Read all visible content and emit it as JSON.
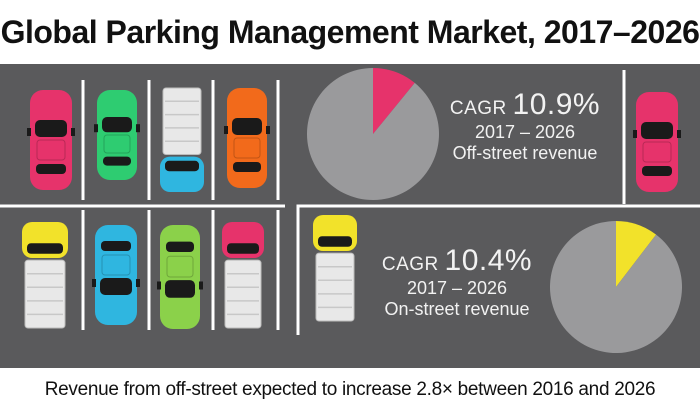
{
  "title": "Global Parking Management Market, 2017–2026",
  "footer": "Revenue from off-street expected to increase 2.8× between 2016 and 2026",
  "colors": {
    "background": "#5a5a5c",
    "pie_base": "#9a9a9c",
    "offstreet_accent": "#e6336b",
    "onstreet_accent": "#f2e22a",
    "line": "#ffffff"
  },
  "chart_data": [
    {
      "type": "pie",
      "title": "",
      "cagr_label": "CAGR",
      "cagr_value": "10.9%",
      "period": "2017 – 2026",
      "label": "Off-street revenue",
      "slices": [
        {
          "name": "",
          "value": 10.9,
          "color": "#e6336b"
        },
        {
          "name": "",
          "value": 89.1,
          "color": "#9a9a9c"
        }
      ]
    },
    {
      "type": "pie",
      "title": "",
      "cagr_label": "CAGR",
      "cagr_value": "10.4%",
      "period": "2017 – 2026",
      "label": "On-street revenue",
      "slices": [
        {
          "name": "",
          "value": 10.4,
          "color": "#f2e22a"
        },
        {
          "name": "",
          "value": 89.6,
          "color": "#9a9a9c"
        }
      ]
    }
  ],
  "vehicles": [
    {
      "kind": "car",
      "color": "#e6336b",
      "name": "car-pink-top-1"
    },
    {
      "kind": "car",
      "color": "#2ecc71",
      "name": "car-green-top-2"
    },
    {
      "kind": "truck",
      "color": "#2fb6e0",
      "name": "truck-blue-top-3"
    },
    {
      "kind": "car",
      "color": "#f26a1b",
      "name": "car-orange-top-4"
    },
    {
      "kind": "truck",
      "color": "#f2e22a",
      "name": "truck-yellow-bottom-1"
    },
    {
      "kind": "car",
      "color": "#2fb6e0",
      "name": "car-blue-bottom-2"
    },
    {
      "kind": "car",
      "color": "#8bd14a",
      "name": "car-green-bottom-3"
    },
    {
      "kind": "truck",
      "color": "#e6336b",
      "name": "truck-pink-bottom-4"
    },
    {
      "kind": "car",
      "color": "#e6336b",
      "name": "car-pink-right"
    },
    {
      "kind": "truck",
      "color": "#f2e22a",
      "name": "truck-yellow-street"
    }
  ]
}
